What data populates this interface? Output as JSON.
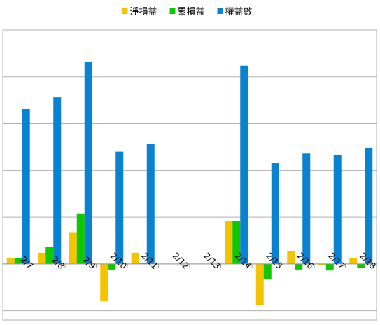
{
  "chart_data": {
    "type": "bar",
    "categories": [
      "2/7",
      "2/8",
      "2/9",
      "2/10",
      "2/11",
      "2/12",
      "2/13",
      "2/14",
      "2/15",
      "2/16",
      "2/17",
      "2/18"
    ],
    "series": [
      {
        "name": "淨損益",
        "color": "#f5c400",
        "values": [
          3,
          6,
          17,
          -20,
          6,
          0,
          0,
          23,
          -22,
          7,
          -0.5,
          3
        ]
      },
      {
        "name": "累損益",
        "color": "#0fc800",
        "values": [
          3,
          9,
          27,
          -3,
          0.5,
          0,
          0,
          23,
          -8,
          -3,
          -3.5,
          -2
        ]
      },
      {
        "name": "權益數",
        "color": "#0a82d2",
        "values": [
          83,
          89,
          108,
          60,
          64,
          0,
          0,
          106,
          54,
          59,
          58,
          62
        ]
      }
    ],
    "ylim": [
      -30,
      125
    ],
    "grid": true,
    "legend": "top"
  }
}
